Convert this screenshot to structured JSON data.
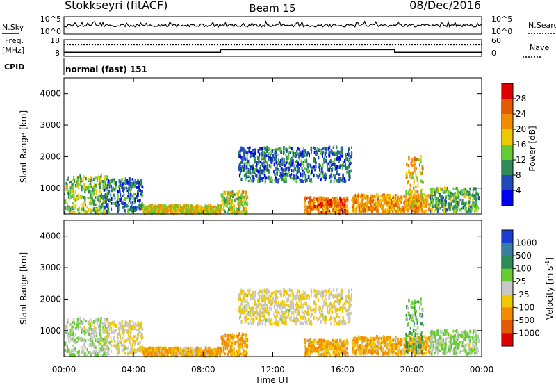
{
  "header": {
    "station": "Stokkseyri (fitACF)",
    "beam": "Beam 15",
    "date": "08/Dec/2016"
  },
  "noise_panel": {
    "left_label": "N.Sky",
    "right_label": "N.Search",
    "left_ticks": [
      "10^5",
      "10^0"
    ],
    "right_ticks": [
      "10^5",
      "10^0"
    ]
  },
  "freq_panel": {
    "left_label_1": "Freq.",
    "left_label_2": "[MHz]",
    "right_label": "Nave",
    "left_ticks": [
      "18",
      "8"
    ],
    "right_ticks": [
      "60",
      "0"
    ]
  },
  "cpid": {
    "label": "CPID",
    "text": "normal (fast) 151"
  },
  "time_axis": {
    "label": "Time UT",
    "ticks": [
      "00:00",
      "04:00",
      "08:00",
      "12:00",
      "16:00",
      "20:00",
      "00:00"
    ]
  },
  "range_axis": {
    "label": "Slant Range [km]",
    "ticks": [
      "1000",
      "2000",
      "3000",
      "4000"
    ]
  },
  "power_scale": {
    "label": "Power [dB]",
    "ticks": [
      "4",
      "8",
      "12",
      "16",
      "20",
      "24",
      "28"
    ],
    "colors": [
      "#0000ee",
      "#1e4ab8",
      "#2e8b57",
      "#66cc33",
      "#f0c800",
      "#f28c00",
      "#e55a00",
      "#dd0000"
    ]
  },
  "velocity_scale": {
    "label": "Velocity [m s",
    "label_sup": "-1",
    "label_end": "]",
    "ticks": [
      "1000",
      "500",
      "100",
      "25",
      "-25",
      "-100",
      "-500",
      "-1000"
    ],
    "colors": [
      "#1a3fd0",
      "#3a7fa0",
      "#2e8b57",
      "#66cc33",
      "#c8c8c8",
      "#f0c800",
      "#f28c00",
      "#e55a00",
      "#dd0000"
    ]
  },
  "chart_data": {
    "type": "heatmap",
    "title": "Stokkseyri (fitACF)   Beam 15   08/Dec/2016",
    "xlabel": "Time UT",
    "ylabel": "Slant Range [km]",
    "xlim": [
      "00:00",
      "24:00"
    ],
    "ylim": [
      180,
      4500
    ],
    "panels": [
      "Power [dB]",
      "Velocity [m s-1]"
    ],
    "echo_regions": [
      {
        "t_start": 0.0,
        "t_end": 2.5,
        "range_min": 200,
        "range_max": 1400,
        "power_db": 14,
        "velocity": 25
      },
      {
        "t_start": 2.3,
        "t_end": 4.5,
        "range_min": 250,
        "range_max": 1300,
        "power_db": 8,
        "velocity": -25
      },
      {
        "t_start": 4.5,
        "t_end": 9.0,
        "range_min": 200,
        "range_max": 450,
        "power_db": 18,
        "velocity": -100
      },
      {
        "t_start": 9.0,
        "t_end": 10.5,
        "range_min": 200,
        "range_max": 900,
        "power_db": 16,
        "velocity": -100
      },
      {
        "t_start": 10.0,
        "t_end": 16.5,
        "range_min": 1200,
        "range_max": 2300,
        "power_db": 8,
        "velocity": -25
      },
      {
        "t_start": 13.8,
        "t_end": 16.3,
        "range_min": 200,
        "range_max": 700,
        "power_db": 24,
        "velocity": -100
      },
      {
        "t_start": 16.5,
        "t_end": 21.0,
        "range_min": 250,
        "range_max": 800,
        "power_db": 22,
        "velocity": -100
      },
      {
        "t_start": 19.6,
        "t_end": 20.6,
        "range_min": 300,
        "range_max": 2000,
        "power_db": 20,
        "velocity": 100
      },
      {
        "t_start": 21.0,
        "t_end": 23.8,
        "range_min": 250,
        "range_max": 1000,
        "power_db": 12,
        "velocity": 25
      }
    ],
    "freq_mhz": [
      {
        "t_start": 0.0,
        "t_end": 9.0,
        "value": 10
      },
      {
        "t_start": 9.0,
        "t_end": 19.0,
        "value": 12
      },
      {
        "t_start": 19.0,
        "t_end": 24.0,
        "value": 10
      }
    ],
    "nave": 46
  }
}
